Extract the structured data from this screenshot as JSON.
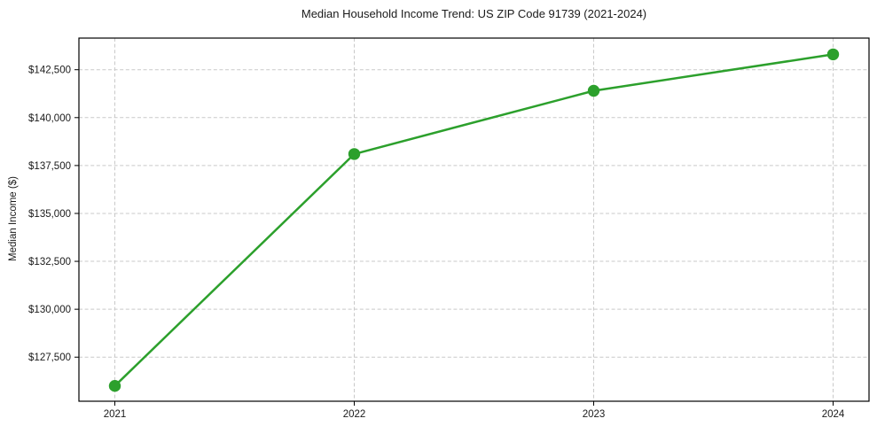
{
  "chart_data": {
    "type": "line",
    "title": "Median Household Income Trend: US ZIP Code 91739 (2021-2024)",
    "xlabel": "",
    "ylabel": "Median Income ($)",
    "categories": [
      "2021",
      "2022",
      "2023",
      "2024"
    ],
    "series": [
      {
        "name": "Median Household Income",
        "values": [
          126000,
          138100,
          141400,
          143300
        ],
        "color": "#2ca02c",
        "marker": "circle"
      }
    ],
    "yticks": [
      127500,
      130000,
      132500,
      135000,
      137500,
      140000,
      142500
    ],
    "ytick_labels": [
      "$127,500",
      "$130,000",
      "$132,500",
      "$135,000",
      "$137,500",
      "$140,000",
      "$142,500"
    ],
    "ylim": [
      125200,
      144150
    ],
    "grid": true,
    "grid_style": "dashed",
    "grid_color": "#c9c9c9",
    "frame_color": "#000000",
    "legend": false
  }
}
